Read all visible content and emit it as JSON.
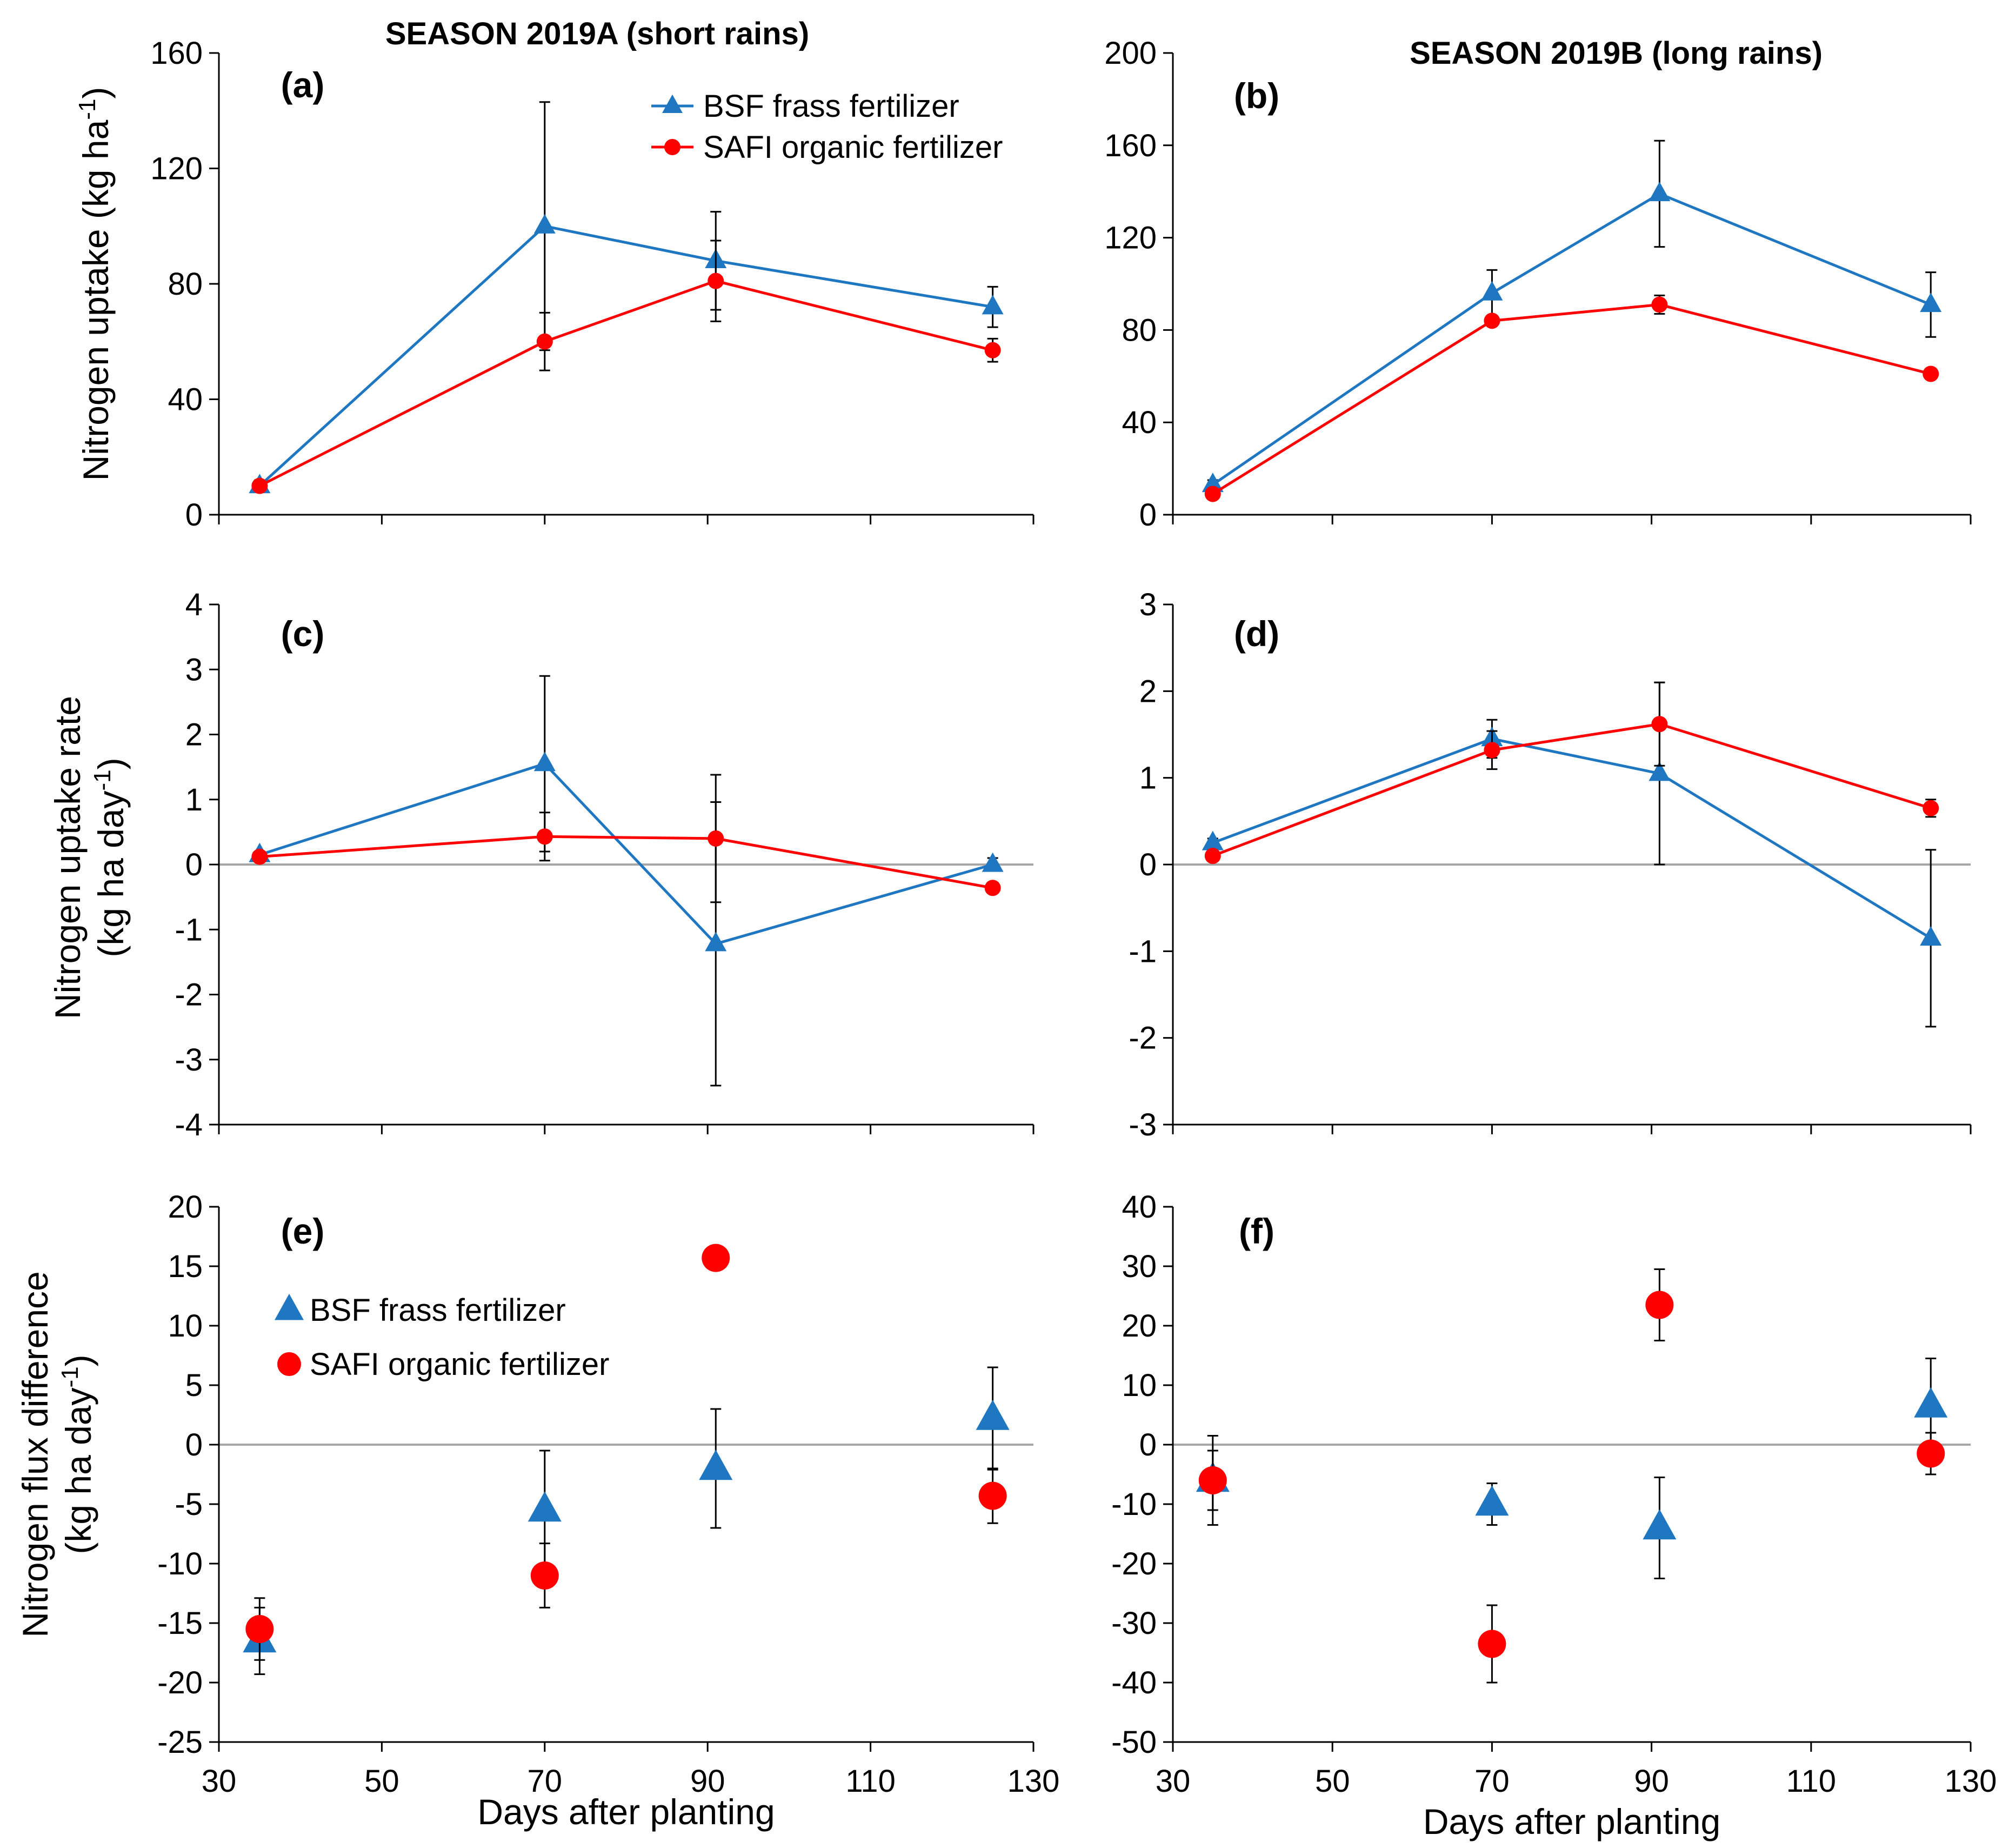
{
  "colors": {
    "bsf": "#1F77C2",
    "safi": "#FF0000",
    "axis": "#000000",
    "zero": "#A6A6A6"
  },
  "row_titles": {
    "a": [
      "Nitrogen uptake (kg ha",
      "-1",
      ")"
    ],
    "c": [
      "Nitrogen uptake rate",
      "(kg ha day",
      "-1",
      ")"
    ],
    "e": [
      "Nitrogen flux difference",
      "(kg ha day",
      "-1",
      ")"
    ]
  },
  "chart_data": [
    {
      "id": "a",
      "panel_label": "(a)",
      "type": "line",
      "title": "SEASON 2019A (short rains)",
      "ylim": [
        0,
        160
      ],
      "yticks": [
        "0",
        "40",
        "80",
        "120",
        "160"
      ],
      "xlim": [
        30,
        130
      ],
      "xtick_labels": [],
      "legend": {
        "position": "top-right",
        "entries": [
          "BSF frass fertilizer",
          "SAFI organic fertilizer"
        ]
      },
      "series": [
        {
          "name": "BSF frass fertilizer",
          "marker": "triangle",
          "x": [
            35,
            70,
            91,
            125
          ],
          "y": [
            10,
            100,
            88,
            72
          ],
          "err": [
            2,
            43,
            17,
            7
          ]
        },
        {
          "name": "SAFI organic fertilizer",
          "marker": "circle",
          "x": [
            35,
            70,
            91,
            125
          ],
          "y": [
            10,
            60,
            81,
            57
          ],
          "err": [
            1,
            10,
            14,
            4
          ]
        }
      ]
    },
    {
      "id": "b",
      "panel_label": "(b)",
      "type": "line",
      "title": "SEASON 2019B (long rains)",
      "ylim": [
        0,
        200
      ],
      "yticks": [
        "0",
        "40",
        "80",
        "120",
        "160",
        "200"
      ],
      "xlim": [
        30,
        130
      ],
      "xtick_labels": [],
      "series": [
        {
          "name": "BSF frass fertilizer",
          "marker": "triangle",
          "x": [
            35,
            70,
            91,
            125
          ],
          "y": [
            13,
            96,
            139,
            91
          ],
          "err": [
            2,
            10,
            23,
            14
          ]
        },
        {
          "name": "SAFI organic fertilizer",
          "marker": "circle",
          "x": [
            35,
            70,
            91,
            125
          ],
          "y": [
            9,
            84,
            91,
            61
          ],
          "err": [
            1,
            2,
            4,
            2
          ]
        }
      ]
    },
    {
      "id": "c",
      "panel_label": "(c)",
      "type": "line",
      "ylim": [
        -4,
        4
      ],
      "yticks": [
        "-4",
        "-3",
        "-2",
        "-1",
        "0",
        "1",
        "2",
        "3",
        "4"
      ],
      "xlim": [
        30,
        130
      ],
      "xtick_labels": [],
      "zero_line": true,
      "series": [
        {
          "name": "BSF frass fertilizer",
          "marker": "triangle",
          "x": [
            35,
            70,
            91,
            125
          ],
          "y": [
            0.15,
            1.55,
            -1.22,
            0.0
          ],
          "err": [
            0.05,
            1.35,
            2.18,
            0.1
          ]
        },
        {
          "name": "SAFI organic fertilizer",
          "marker": "circle",
          "x": [
            35,
            70,
            91,
            125
          ],
          "y": [
            0.12,
            0.43,
            0.4,
            -0.36
          ],
          "err": [
            0.03,
            0.37,
            0.98,
            0.05
          ]
        }
      ]
    },
    {
      "id": "d",
      "panel_label": "(d)",
      "type": "line",
      "ylim": [
        -3,
        3
      ],
      "yticks": [
        "-3",
        "-2",
        "-1",
        "0",
        "1",
        "2",
        "3"
      ],
      "xlim": [
        30,
        130
      ],
      "xtick_labels": [],
      "zero_line": true,
      "series": [
        {
          "name": "BSF frass fertilizer",
          "marker": "triangle",
          "x": [
            35,
            70,
            91,
            125
          ],
          "y": [
            0.25,
            1.45,
            1.05,
            -0.85
          ],
          "err": [
            0.05,
            0.22,
            1.05,
            1.02
          ]
        },
        {
          "name": "SAFI organic fertilizer",
          "marker": "circle",
          "x": [
            35,
            70,
            91,
            125
          ],
          "y": [
            0.1,
            1.32,
            1.62,
            0.65
          ],
          "err": [
            0.02,
            0.22,
            0.48,
            0.1
          ]
        }
      ]
    },
    {
      "id": "e",
      "panel_label": "(e)",
      "type": "scatter",
      "ylim": [
        -25,
        20
      ],
      "yticks": [
        "-25",
        "-20",
        "-15",
        "-10",
        "-5",
        "0",
        "5",
        "10",
        "15",
        "20"
      ],
      "xlim": [
        30,
        130
      ],
      "xtick_labels": [
        "30",
        "50",
        "70",
        "90",
        "110",
        "130"
      ],
      "xlabel": "Days after planting",
      "zero_line": true,
      "legend": {
        "position": "top-left",
        "entries": [
          "BSF frass fertilizer",
          "SAFI organic fertilizer"
        ]
      },
      "series": [
        {
          "name": "BSF frass fertilizer",
          "marker": "triangle",
          "x": [
            35,
            70,
            91,
            125
          ],
          "y": [
            -16.5,
            -5.5,
            -2.0,
            2.2
          ],
          "err": [
            2.8,
            5.0,
            5.0,
            4.3
          ]
        },
        {
          "name": "SAFI organic fertilizer",
          "marker": "circle",
          "x": [
            35,
            70,
            91,
            125
          ],
          "y": [
            -15.5,
            -11.0,
            15.7,
            -4.3
          ],
          "err": [
            2.6,
            2.7,
            0,
            2.3
          ]
        }
      ]
    },
    {
      "id": "f",
      "panel_label": "(f)",
      "type": "scatter",
      "ylim": [
        -50,
        40
      ],
      "yticks": [
        "-50",
        "-40",
        "-30",
        "-20",
        "-10",
        "0",
        "10",
        "20",
        "30",
        "40"
      ],
      "xlim": [
        30,
        130
      ],
      "xtick_labels": [
        "30",
        "50",
        "70",
        "90",
        "110",
        "130"
      ],
      "xlabel": "Days after planting",
      "zero_line": true,
      "series": [
        {
          "name": "BSF frass fertilizer",
          "marker": "triangle",
          "x": [
            35,
            70,
            91,
            125
          ],
          "y": [
            -6,
            -10,
            -14,
            6.5
          ],
          "err": [
            7.5,
            3.5,
            8.5,
            8.0
          ]
        },
        {
          "name": "SAFI organic fertilizer",
          "marker": "circle",
          "x": [
            35,
            70,
            91,
            125
          ],
          "y": [
            -6,
            -33.5,
            23.5,
            -1.5
          ],
          "err": [
            5.0,
            6.5,
            6.0,
            3.5
          ]
        }
      ]
    }
  ]
}
